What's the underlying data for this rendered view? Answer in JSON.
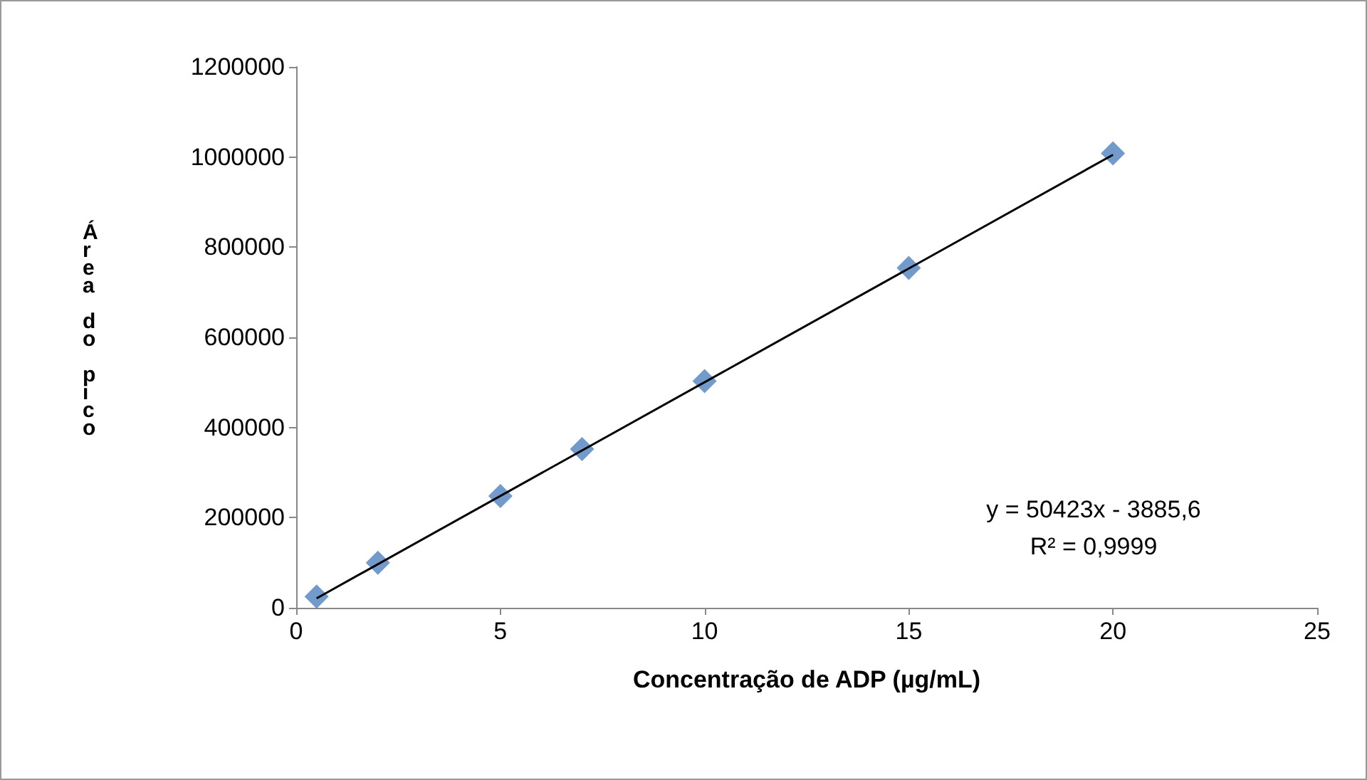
{
  "chart_data": {
    "type": "scatter",
    "xlabel": "Concentração de ADP (µg/mL)",
    "ylabel": "Área do pico",
    "series": [
      {
        "color": "#4f81bd",
        "marker": "diamond",
        "x": [
          0.5,
          2,
          5,
          7,
          10,
          15,
          20
        ],
        "values": [
          25000,
          100000,
          248000,
          352000,
          503000,
          754000,
          1008000
        ]
      },
      {
        "type": "line",
        "color": "#000000",
        "marker": "none",
        "x": [
          0.5,
          20
        ],
        "values": [
          21000,
          1005000
        ]
      }
    ],
    "xlim": [
      0,
      25
    ],
    "xticks": [
      0,
      5,
      10,
      15,
      20,
      25
    ],
    "ylim": [
      0,
      1200000
    ],
    "yticks": [
      0,
      200000,
      400000,
      600000,
      800000,
      1000000,
      1200000
    ],
    "grid": false,
    "annotations": [
      "y = 50423x - 3885,6\nR² = 0,9999"
    ]
  }
}
